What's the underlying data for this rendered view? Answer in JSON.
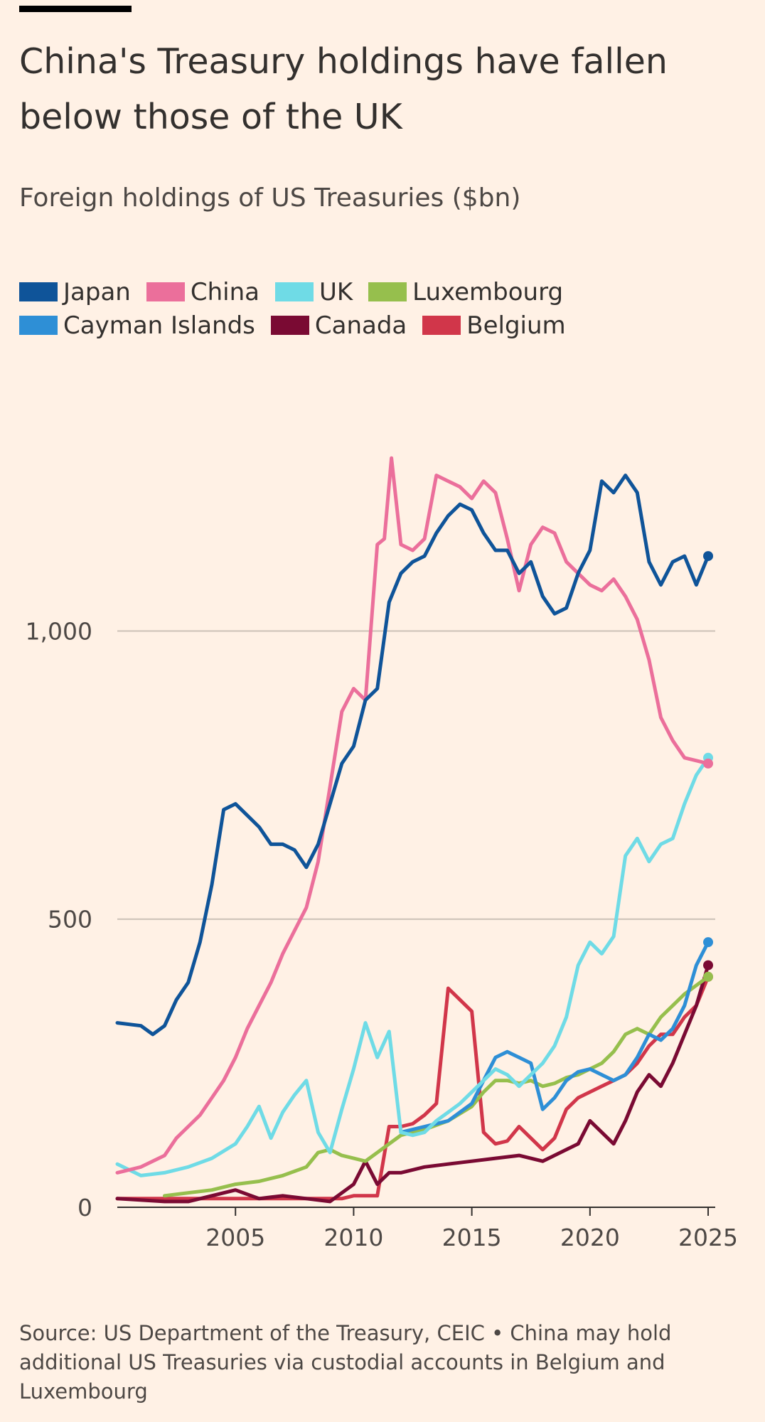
{
  "title": "China's Treasury holdings have fallen below those of the UK",
  "subtitle": "Foreign holdings of US Treasuries ($bn)",
  "source": "Source: US Department of the Treasury, CEIC • China may hold additional US Treasuries via custodial accounts in Belgium and Luxembourg",
  "legend": [
    {
      "label": "Japan",
      "color": "#0f5499"
    },
    {
      "label": "China",
      "color": "#eb6f9b"
    },
    {
      "label": "UK",
      "color": "#6fdbe6"
    },
    {
      "label": "Luxembourg",
      "color": "#96bf4d"
    },
    {
      "label": "Cayman Islands",
      "color": "#2e8fd6"
    },
    {
      "label": "Canada",
      "color": "#7a0a33"
    },
    {
      "label": "Belgium",
      "color": "#d1364a"
    }
  ],
  "chart_data": {
    "type": "line",
    "title": "China's Treasury holdings have fallen below those of the UK",
    "subtitle": "Foreign holdings of US Treasuries ($bn)",
    "xlabel": "",
    "ylabel": "",
    "xlim": [
      2000,
      2025.3
    ],
    "ylim": [
      0,
      1330
    ],
    "x_ticks": [
      2005,
      2010,
      2015,
      2020,
      2025
    ],
    "x_tick_labels": [
      "2005",
      "2010",
      "2015",
      "2020",
      "2025"
    ],
    "y_ticks": [
      0,
      500,
      1000
    ],
    "y_tick_labels": [
      "0",
      "500",
      "1,000"
    ],
    "grid": "horizontal",
    "legend_position": "top",
    "series": [
      {
        "name": "Japan",
        "color": "#0f5499",
        "end_marker": true,
        "x": [
          2000.0,
          2001.0,
          2001.5,
          2002.0,
          2002.5,
          2003.0,
          2003.5,
          2004.0,
          2004.5,
          2005.0,
          2005.5,
          2006.0,
          2006.5,
          2007.0,
          2007.5,
          2008.0,
          2008.5,
          2009.0,
          2009.5,
          2010.0,
          2010.5,
          2011.0,
          2011.5,
          2012.0,
          2012.5,
          2013.0,
          2013.5,
          2014.0,
          2014.5,
          2015.0,
          2015.5,
          2016.0,
          2016.5,
          2017.0,
          2017.5,
          2018.0,
          2018.5,
          2019.0,
          2019.5,
          2020.0,
          2020.5,
          2021.0,
          2021.5,
          2022.0,
          2022.5,
          2023.0,
          2023.5,
          2024.0,
          2024.5,
          2025.0
        ],
        "y": [
          320,
          315,
          300,
          315,
          360,
          390,
          460,
          560,
          690,
          700,
          680,
          660,
          630,
          630,
          620,
          590,
          630,
          700,
          770,
          800,
          880,
          900,
          1050,
          1100,
          1120,
          1130,
          1170,
          1200,
          1220,
          1210,
          1170,
          1140,
          1140,
          1100,
          1120,
          1060,
          1030,
          1040,
          1100,
          1140,
          1260,
          1240,
          1270,
          1240,
          1120,
          1080,
          1120,
          1130,
          1080,
          1130
        ]
      },
      {
        "name": "China",
        "color": "#eb6f9b",
        "end_marker": true,
        "x": [
          2000.0,
          2001.0,
          2002.0,
          2002.5,
          2003.0,
          2003.5,
          2004.0,
          2004.5,
          2005.0,
          2005.5,
          2006.0,
          2006.5,
          2007.0,
          2007.5,
          2008.0,
          2008.5,
          2009.0,
          2009.5,
          2010.0,
          2010.5,
          2011.0,
          2011.3,
          2011.6,
          2012.0,
          2012.5,
          2013.0,
          2013.5,
          2014.0,
          2014.5,
          2015.0,
          2015.5,
          2016.0,
          2016.5,
          2017.0,
          2017.5,
          2018.0,
          2018.5,
          2019.0,
          2019.5,
          2020.0,
          2020.5,
          2021.0,
          2021.5,
          2022.0,
          2022.5,
          2023.0,
          2023.5,
          2024.0,
          2024.5,
          2025.0
        ],
        "y": [
          60,
          70,
          90,
          120,
          140,
          160,
          190,
          220,
          260,
          310,
          350,
          390,
          440,
          480,
          520,
          600,
          730,
          860,
          900,
          880,
          1150,
          1160,
          1300,
          1150,
          1140,
          1160,
          1270,
          1260,
          1250,
          1230,
          1260,
          1240,
          1160,
          1070,
          1150,
          1180,
          1170,
          1120,
          1100,
          1080,
          1070,
          1090,
          1060,
          1020,
          950,
          850,
          810,
          780,
          775,
          770
        ]
      },
      {
        "name": "UK",
        "color": "#6fdbe6",
        "end_marker": true,
        "x": [
          2000.0,
          2001.0,
          2002.0,
          2003.0,
          2004.0,
          2005.0,
          2005.5,
          2006.0,
          2006.5,
          2007.0,
          2007.5,
          2008.0,
          2008.5,
          2009.0,
          2009.5,
          2010.0,
          2010.5,
          2011.0,
          2011.5,
          2012.0,
          2012.5,
          2013.0,
          2013.5,
          2014.0,
          2014.5,
          2015.0,
          2015.5,
          2016.0,
          2016.5,
          2017.0,
          2017.5,
          2018.0,
          2018.5,
          2019.0,
          2019.5,
          2020.0,
          2020.5,
          2021.0,
          2021.5,
          2022.0,
          2022.5,
          2023.0,
          2023.5,
          2024.0,
          2024.5,
          2025.0
        ],
        "y": [
          75,
          55,
          60,
          70,
          85,
          110,
          140,
          175,
          120,
          165,
          195,
          220,
          130,
          95,
          170,
          240,
          320,
          260,
          305,
          130,
          125,
          130,
          150,
          165,
          180,
          200,
          220,
          240,
          230,
          210,
          230,
          250,
          280,
          330,
          420,
          460,
          440,
          470,
          610,
          640,
          600,
          630,
          640,
          700,
          750,
          780
        ]
      },
      {
        "name": "Luxembourg",
        "color": "#96bf4d",
        "end_marker": true,
        "x": [
          2002.0,
          2003.0,
          2004.0,
          2005.0,
          2006.0,
          2007.0,
          2008.0,
          2008.5,
          2009.0,
          2009.5,
          2010.0,
          2010.5,
          2011.0,
          2011.5,
          2012.0,
          2013.0,
          2014.0,
          2015.0,
          2015.5,
          2016.0,
          2016.5,
          2017.0,
          2017.5,
          2018.0,
          2018.5,
          2019.0,
          2019.5,
          2020.0,
          2020.5,
          2021.0,
          2021.5,
          2022.0,
          2022.5,
          2023.0,
          2023.5,
          2024.0,
          2024.5,
          2025.0
        ],
        "y": [
          20,
          25,
          30,
          40,
          45,
          55,
          70,
          95,
          100,
          90,
          85,
          80,
          95,
          110,
          125,
          135,
          150,
          175,
          200,
          220,
          220,
          215,
          220,
          210,
          215,
          225,
          230,
          240,
          250,
          270,
          300,
          310,
          300,
          330,
          350,
          370,
          385,
          400
        ]
      },
      {
        "name": "Cayman Islands",
        "color": "#2e8fd6",
        "end_marker": true,
        "x": [
          2012.0,
          2013.0,
          2014.0,
          2014.5,
          2015.0,
          2015.5,
          2016.0,
          2016.5,
          2017.0,
          2017.5,
          2018.0,
          2018.5,
          2019.0,
          2019.5,
          2020.0,
          2020.5,
          2021.0,
          2021.5,
          2022.0,
          2022.5,
          2023.0,
          2023.5,
          2024.0,
          2024.5,
          2025.0
        ],
        "y": [
          130,
          140,
          150,
          165,
          180,
          220,
          260,
          270,
          260,
          250,
          170,
          190,
          220,
          235,
          240,
          230,
          220,
          230,
          260,
          300,
          290,
          310,
          350,
          420,
          460
        ]
      },
      {
        "name": "Canada",
        "color": "#7a0a33",
        "end_marker": true,
        "x": [
          2000.0,
          2002.0,
          2003.0,
          2004.0,
          2005.0,
          2006.0,
          2007.0,
          2008.0,
          2009.0,
          2010.0,
          2010.5,
          2011.0,
          2011.5,
          2012.0,
          2013.0,
          2014.0,
          2015.0,
          2016.0,
          2017.0,
          2018.0,
          2019.0,
          2019.5,
          2020.0,
          2020.5,
          2021.0,
          2021.5,
          2022.0,
          2022.5,
          2023.0,
          2023.5,
          2024.0,
          2024.5,
          2025.0
        ],
        "y": [
          15,
          10,
          10,
          20,
          30,
          15,
          20,
          15,
          10,
          40,
          80,
          40,
          60,
          60,
          70,
          75,
          80,
          85,
          90,
          80,
          100,
          110,
          150,
          130,
          110,
          150,
          200,
          230,
          210,
          250,
          300,
          350,
          420
        ]
      },
      {
        "name": "Belgium",
        "color": "#d1364a",
        "end_marker": true,
        "x": [
          2000.0,
          2002.0,
          2004.0,
          2006.0,
          2008.0,
          2009.5,
          2010.0,
          2010.5,
          2011.0,
          2011.5,
          2012.0,
          2012.5,
          2013.0,
          2013.5,
          2014.0,
          2014.5,
          2015.0,
          2015.5,
          2016.0,
          2016.5,
          2017.0,
          2017.5,
          2018.0,
          2018.5,
          2019.0,
          2019.5,
          2020.0,
          2020.5,
          2021.0,
          2021.5,
          2022.0,
          2022.5,
          2023.0,
          2023.5,
          2024.0,
          2024.5,
          2025.0
        ],
        "y": [
          15,
          15,
          15,
          15,
          15,
          15,
          20,
          20,
          20,
          140,
          140,
          145,
          160,
          180,
          380,
          360,
          340,
          130,
          110,
          115,
          140,
          120,
          100,
          120,
          170,
          190,
          200,
          210,
          220,
          230,
          250,
          280,
          300,
          300,
          330,
          350,
          400
        ]
      }
    ]
  }
}
